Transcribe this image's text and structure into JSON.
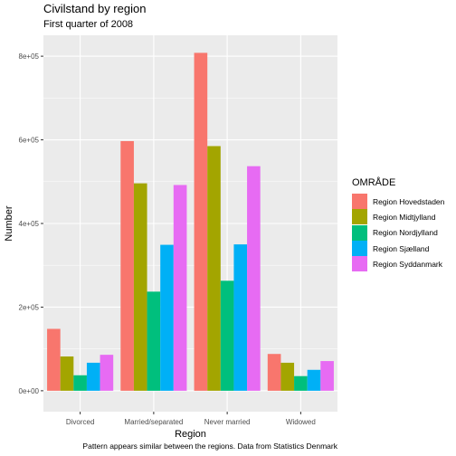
{
  "chart_data": {
    "type": "bar",
    "title": "Civilstand by region",
    "subtitle": "First quarter of 2008",
    "caption": "Pattern appears similar between the regions. Data from Statistics Denmark",
    "xlabel": "Region",
    "ylabel": "Number",
    "categories": [
      "Divorced",
      "Married/separated",
      "Never married",
      "Widowed"
    ],
    "series": [
      {
        "name": "Region Hovedstaden",
        "color": "#F8766D",
        "values": [
          148000,
          597000,
          808000,
          88000
        ]
      },
      {
        "name": "Region Midtjylland",
        "color": "#A3A500",
        "values": [
          82000,
          496000,
          585000,
          67000
        ]
      },
      {
        "name": "Region Nordjylland",
        "color": "#00BF7D",
        "values": [
          37000,
          237000,
          263000,
          35000
        ]
      },
      {
        "name": "Region Sjælland",
        "color": "#00B0F6",
        "values": [
          67000,
          349000,
          350000,
          50000
        ]
      },
      {
        "name": "Region Syddanmark",
        "color": "#E76BF3",
        "values": [
          86000,
          492000,
          537000,
          71000
        ]
      }
    ],
    "ylim": [
      -50000,
      850000
    ],
    "yticks": [
      0,
      200000,
      400000,
      600000,
      800000
    ],
    "ytick_labels": [
      "0e+00",
      "2e+05",
      "4e+05",
      "6e+05",
      "8e+05"
    ],
    "legend_title": "OMRÅDE",
    "legend_position": "right",
    "grid": true,
    "panel_background": "#EBEBEB"
  }
}
